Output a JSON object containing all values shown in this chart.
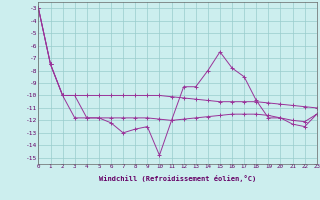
{
  "xlabel": "Windchill (Refroidissement éolien,°C)",
  "x": [
    0,
    1,
    2,
    3,
    4,
    5,
    6,
    7,
    8,
    9,
    10,
    11,
    12,
    13,
    14,
    15,
    16,
    17,
    18,
    19,
    20,
    21,
    22,
    23
  ],
  "series1": [
    -3,
    -7.5,
    -10,
    -10,
    -11.8,
    -11.8,
    -12.2,
    -13.0,
    -12.7,
    -12.5,
    -14.8,
    -12.0,
    -9.3,
    -9.3,
    -8.0,
    -6.5,
    -7.8,
    -8.5,
    -10.4,
    -11.8,
    -11.8,
    -12.3,
    -12.5,
    -11.5
  ],
  "series2": [
    -3,
    -7.5,
    -10.0,
    -10.0,
    -10.0,
    -10.0,
    -10.0,
    -10.0,
    -10.0,
    -10.0,
    -10.0,
    -10.1,
    -10.2,
    -10.3,
    -10.4,
    -10.5,
    -10.5,
    -10.5,
    -10.5,
    -10.6,
    -10.7,
    -10.8,
    -10.9,
    -11.0
  ],
  "series3": [
    -3,
    -7.5,
    -10.0,
    -11.8,
    -11.8,
    -11.8,
    -11.8,
    -11.8,
    -11.8,
    -11.8,
    -11.9,
    -12.0,
    -11.9,
    -11.8,
    -11.7,
    -11.6,
    -11.5,
    -11.5,
    -11.5,
    -11.6,
    -11.8,
    -12.0,
    -12.1,
    -11.5
  ],
  "line_color": "#993399",
  "line_color2": "#993399",
  "bg_color": "#cceeee",
  "grid_color": "#99cccc",
  "ylim": [
    -15.5,
    -2.5
  ],
  "yticks": [
    -15,
    -14,
    -13,
    -12,
    -11,
    -10,
    -9,
    -8,
    -7,
    -6,
    -5,
    -4,
    -3
  ],
  "xlim": [
    0,
    23
  ]
}
